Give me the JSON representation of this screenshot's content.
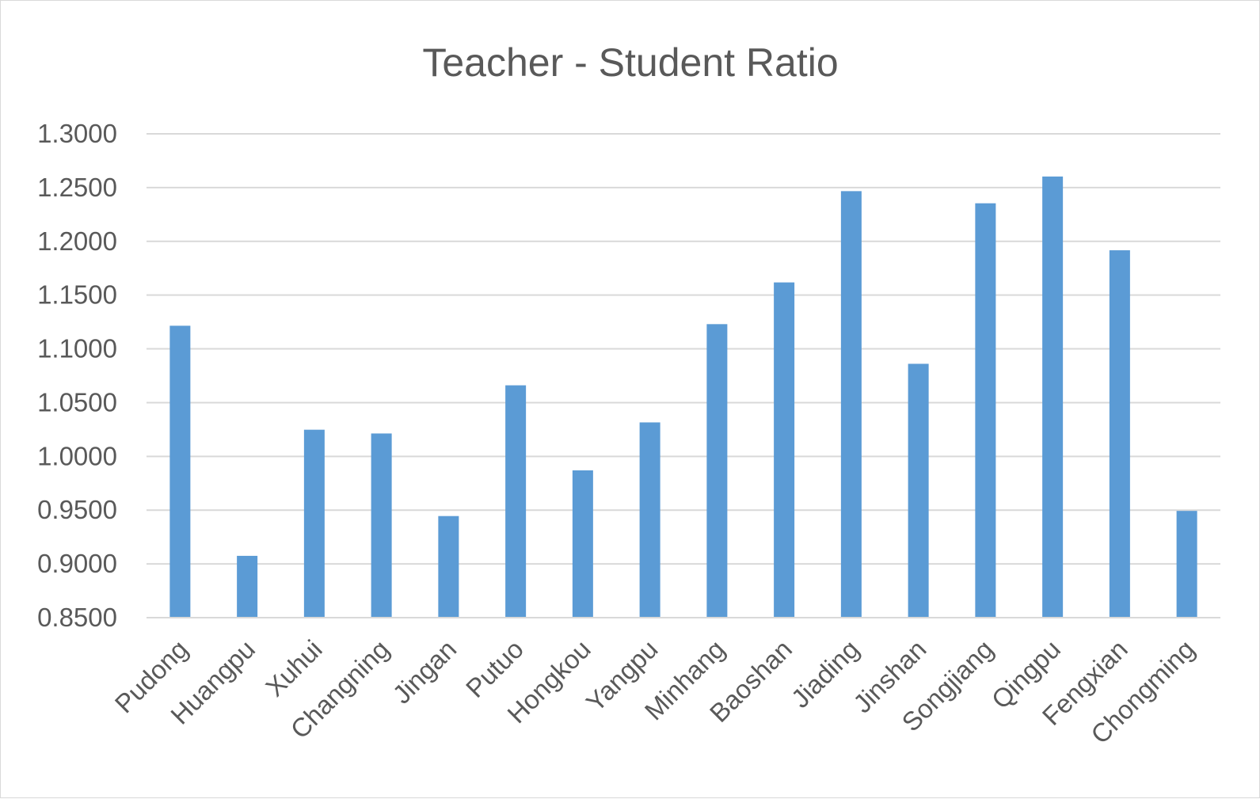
{
  "chart_data": {
    "type": "bar",
    "title": "Teacher - Student Ratio",
    "xlabel": "",
    "ylabel": "",
    "categories": [
      "Pudong",
      "Huangpu",
      "Xuhui",
      "Changning",
      "Jingan",
      "Putuo",
      "Hongkou",
      "Yangpu",
      "Minhang",
      "Baoshan",
      "Jiading",
      "Jinshan",
      "Songjiang",
      "Qingpu",
      "Fengxian",
      "Chongming"
    ],
    "values": [
      1.1215,
      0.9075,
      1.0248,
      1.0213,
      0.9445,
      1.0661,
      0.987,
      1.0316,
      1.123,
      1.1618,
      1.2467,
      1.0861,
      1.2354,
      1.2603,
      1.1917,
      0.9493
    ],
    "ylim": [
      0.85,
      1.3
    ],
    "yticks": [
      "0.8500",
      "0.9000",
      "0.9500",
      "1.0000",
      "1.0500",
      "1.1000",
      "1.1500",
      "1.2000",
      "1.2500",
      "1.3000"
    ],
    "ytick_values": [
      0.85,
      0.9,
      0.95,
      1.0,
      1.05,
      1.1,
      1.15,
      1.2,
      1.25,
      1.3
    ],
    "grid": true,
    "legend": "none",
    "colors": {
      "bar": "#5b9bd5",
      "grid": "#d9d9d9",
      "text": "#595959"
    }
  }
}
